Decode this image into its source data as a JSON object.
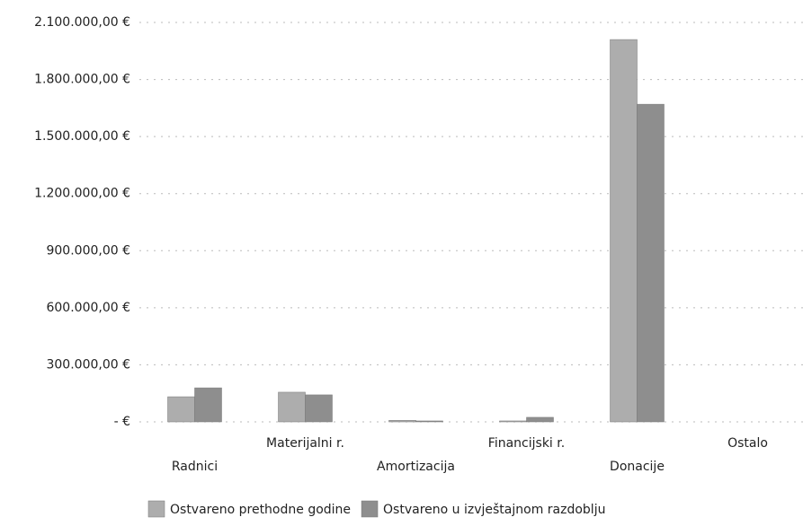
{
  "chart_data": {
    "type": "bar",
    "categories": [
      "Radnici",
      "Materijalni r.",
      "Amortizacija",
      "Financijski r.",
      "Donacije",
      "Ostalo"
    ],
    "series": [
      {
        "name": "Ostvareno prethodne godine",
        "color": "#adadad",
        "values": [
          132000,
          156000,
          8000,
          5000,
          2010000,
          0
        ]
      },
      {
        "name": "Ostvareno u izvještajnom razdoblju",
        "color": "#8e8e8e",
        "values": [
          179000,
          142000,
          5000,
          24000,
          1670000,
          0
        ]
      }
    ],
    "ylim": [
      0,
      2100000
    ],
    "yticks": [
      {
        "value": 0,
        "label": "-  €"
      },
      {
        "value": 300000,
        "label": "300.000,00 €"
      },
      {
        "value": 600000,
        "label": "600.000,00 €"
      },
      {
        "value": 900000,
        "label": "900.000,00 €"
      },
      {
        "value": 1200000,
        "label": "1.200.000,00 €"
      },
      {
        "value": 1500000,
        "label": "1.500.000,00 €"
      },
      {
        "value": 1800000,
        "label": "1.800.000,00 €"
      },
      {
        "value": 2100000,
        "label": "2.100.000,00 €"
      }
    ],
    "grid": true,
    "legend": "bottom"
  }
}
